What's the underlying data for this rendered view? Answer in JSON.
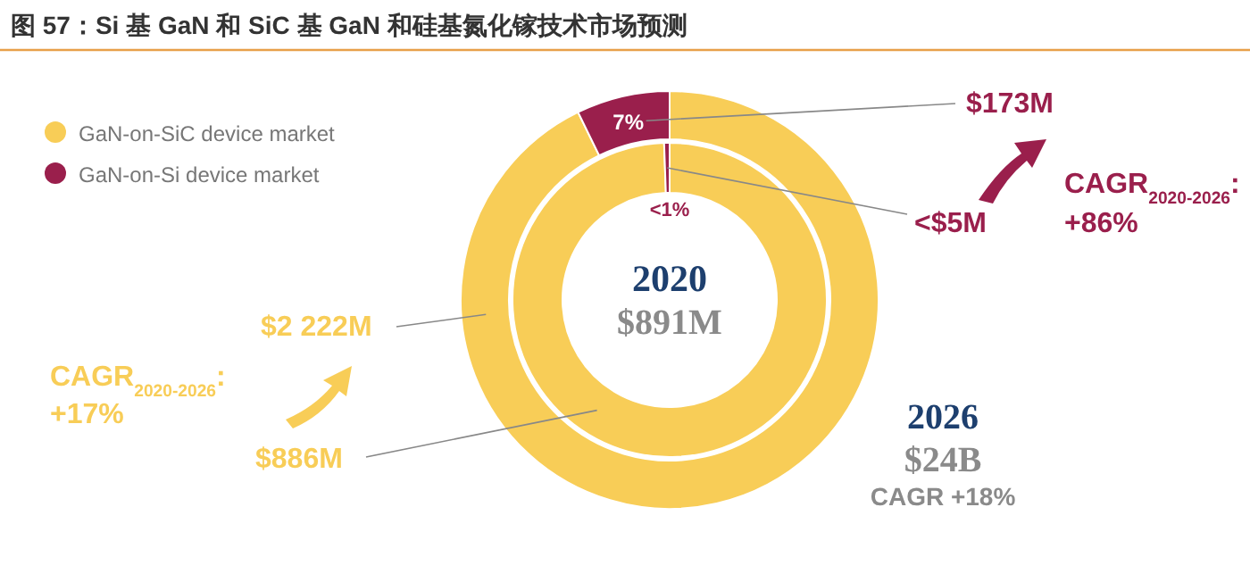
{
  "chart_data": [
    {
      "type": "donut",
      "title": "图 57：Si 基 GaN 和 SiC 基 GaN 和硅基氮化镓技术市场预测",
      "categories": [
        "GaN-on-SiC device market",
        "GaN-on-Si device market"
      ],
      "values": [
        2222,
        173
      ],
      "colors": [
        "#f8cd57",
        "#9a1f4c"
      ],
      "value_labels": [
        "$2 222M",
        "$173M"
      ],
      "legend": "top left",
      "annotations": [
        "7%",
        "CAGR$_{2020-2026}$: +86%",
        "CAGR$_{2020-2026}$: +17%",
        "2026",
        "$24B",
        "CAGR +18%"
      ]
    },
    {
      "type": "donut",
      "title": "2020",
      "subtitle": "$891M",
      "categories": [
        null,
        null
      ],
      "values": [
        886,
        5
      ],
      "colors": [
        "#f8cd57",
        "#9a1f4c"
      ],
      "value_labels": [
        "$886M",
        "<$5M"
      ],
      "annotations": [
        "<1%"
      ]
    }
  ]
}
